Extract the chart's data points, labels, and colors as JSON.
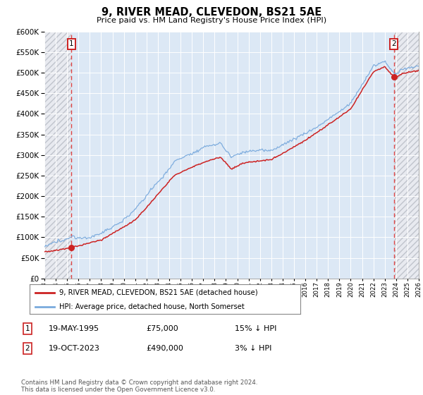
{
  "title": "9, RIVER MEAD, CLEVEDON, BS21 5AE",
  "subtitle": "Price paid vs. HM Land Registry's House Price Index (HPI)",
  "hpi_color": "#7aaadd",
  "price_color": "#cc2222",
  "dashed_color": "#dd4444",
  "bg_chart": "#dce8f5",
  "ylim": [
    0,
    600000
  ],
  "yticks": [
    0,
    50000,
    100000,
    150000,
    200000,
    250000,
    300000,
    350000,
    400000,
    450000,
    500000,
    550000,
    600000
  ],
  "sale1_date": "19-MAY-1995",
  "sale1_price": 75000,
  "sale1_year": 1995.38,
  "sale2_date": "19-OCT-2023",
  "sale2_price": 490000,
  "sale2_year": 2023.8,
  "xmin": 1993,
  "xmax": 2026,
  "legend_line1": "9, RIVER MEAD, CLEVEDON, BS21 5AE (detached house)",
  "legend_line2": "HPI: Average price, detached house, North Somerset",
  "footnote": "Contains HM Land Registry data © Crown copyright and database right 2024.\nThis data is licensed under the Open Government Licence v3.0."
}
